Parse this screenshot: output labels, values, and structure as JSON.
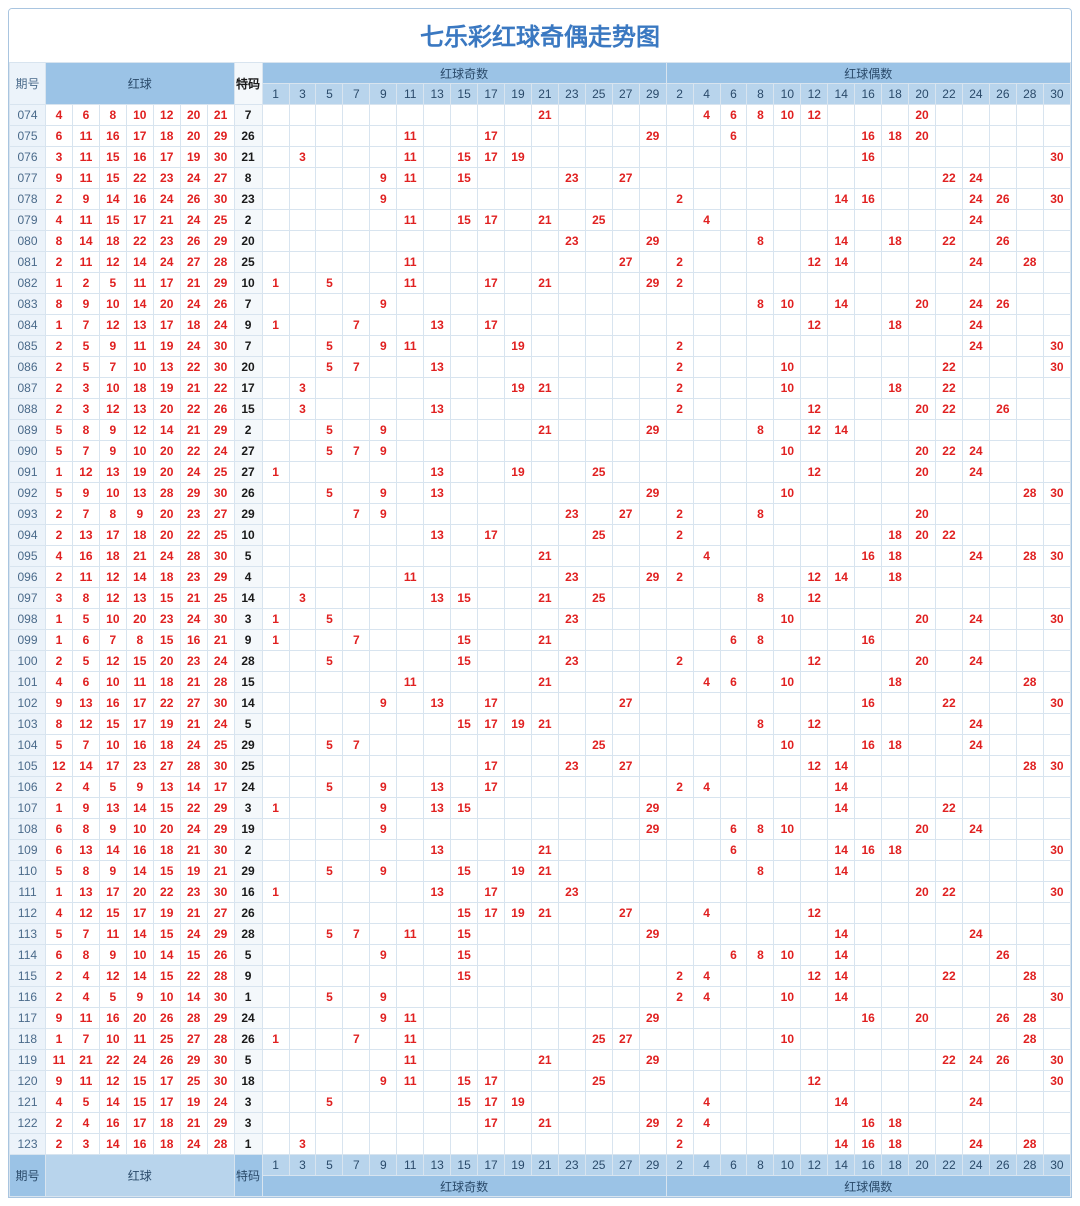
{
  "title": "七乐彩红球奇偶走势图",
  "headers": {
    "period": "期号",
    "red": "红球",
    "te": "特码",
    "odd_group": "红球奇数",
    "even_group": "红球偶数"
  },
  "odd_cols": [
    1,
    3,
    5,
    7,
    9,
    11,
    13,
    15,
    17,
    19,
    21,
    23,
    25,
    27,
    29
  ],
  "even_cols": [
    2,
    4,
    6,
    8,
    10,
    12,
    14,
    16,
    18,
    20,
    22,
    24,
    26,
    28,
    30
  ],
  "colors": {
    "header_bg": "#9bc3e6",
    "header_bg2": "#b8d4ec",
    "text_red": "#e02020",
    "text_dark": "#1a1a1a",
    "border": "#d8e4ef",
    "title": "#3a78c1"
  },
  "rows": [
    {
      "p": "074",
      "r": [
        4,
        6,
        8,
        10,
        12,
        20,
        21
      ],
      "t": 7
    },
    {
      "p": "075",
      "r": [
        6,
        11,
        16,
        17,
        18,
        20,
        29
      ],
      "t": 26
    },
    {
      "p": "076",
      "r": [
        3,
        11,
        15,
        16,
        17,
        19,
        30
      ],
      "t": 21
    },
    {
      "p": "077",
      "r": [
        9,
        11,
        15,
        22,
        23,
        24,
        27
      ],
      "t": 8
    },
    {
      "p": "078",
      "r": [
        2,
        9,
        14,
        16,
        24,
        26,
        30
      ],
      "t": 23
    },
    {
      "p": "079",
      "r": [
        4,
        11,
        15,
        17,
        21,
        24,
        25
      ],
      "t": 2
    },
    {
      "p": "080",
      "r": [
        8,
        14,
        18,
        22,
        23,
        26,
        29
      ],
      "t": 20
    },
    {
      "p": "081",
      "r": [
        2,
        11,
        12,
        14,
        24,
        27,
        28
      ],
      "t": 25
    },
    {
      "p": "082",
      "r": [
        1,
        2,
        5,
        11,
        17,
        21,
        29
      ],
      "t": 10
    },
    {
      "p": "083",
      "r": [
        8,
        9,
        10,
        14,
        20,
        24,
        26
      ],
      "t": 7
    },
    {
      "p": "084",
      "r": [
        1,
        7,
        12,
        13,
        17,
        18,
        24
      ],
      "t": 9
    },
    {
      "p": "085",
      "r": [
        2,
        5,
        9,
        11,
        19,
        24,
        30
      ],
      "t": 7
    },
    {
      "p": "086",
      "r": [
        2,
        5,
        7,
        10,
        13,
        22,
        30
      ],
      "t": 20
    },
    {
      "p": "087",
      "r": [
        2,
        3,
        10,
        18,
        19,
        21,
        22
      ],
      "t": 17
    },
    {
      "p": "088",
      "r": [
        2,
        3,
        12,
        13,
        20,
        22,
        26
      ],
      "t": 15
    },
    {
      "p": "089",
      "r": [
        5,
        8,
        9,
        12,
        14,
        21,
        29
      ],
      "t": 2
    },
    {
      "p": "090",
      "r": [
        5,
        7,
        9,
        10,
        20,
        22,
        24
      ],
      "t": 27
    },
    {
      "p": "091",
      "r": [
        1,
        12,
        13,
        19,
        20,
        24,
        25
      ],
      "t": 27
    },
    {
      "p": "092",
      "r": [
        5,
        9,
        10,
        13,
        28,
        29,
        30
      ],
      "t": 26
    },
    {
      "p": "093",
      "r": [
        2,
        7,
        8,
        9,
        20,
        23,
        27
      ],
      "t": 29
    },
    {
      "p": "094",
      "r": [
        2,
        13,
        17,
        18,
        20,
        22,
        25
      ],
      "t": 10
    },
    {
      "p": "095",
      "r": [
        4,
        16,
        18,
        21,
        24,
        28,
        30
      ],
      "t": 5
    },
    {
      "p": "096",
      "r": [
        2,
        11,
        12,
        14,
        18,
        23,
        29
      ],
      "t": 4
    },
    {
      "p": "097",
      "r": [
        3,
        8,
        12,
        13,
        15,
        21,
        25
      ],
      "t": 14
    },
    {
      "p": "098",
      "r": [
        1,
        5,
        10,
        20,
        23,
        24,
        30
      ],
      "t": 3
    },
    {
      "p": "099",
      "r": [
        1,
        6,
        7,
        8,
        15,
        16,
        21
      ],
      "t": 9
    },
    {
      "p": "100",
      "r": [
        2,
        5,
        12,
        15,
        20,
        23,
        24
      ],
      "t": 28
    },
    {
      "p": "101",
      "r": [
        4,
        6,
        10,
        11,
        18,
        21,
        28
      ],
      "t": 15
    },
    {
      "p": "102",
      "r": [
        9,
        13,
        16,
        17,
        22,
        27,
        30
      ],
      "t": 14
    },
    {
      "p": "103",
      "r": [
        8,
        12,
        15,
        17,
        19,
        21,
        24
      ],
      "t": 5
    },
    {
      "p": "104",
      "r": [
        5,
        7,
        10,
        16,
        18,
        24,
        25
      ],
      "t": 29
    },
    {
      "p": "105",
      "r": [
        12,
        14,
        17,
        23,
        27,
        28,
        30
      ],
      "t": 25
    },
    {
      "p": "106",
      "r": [
        2,
        4,
        5,
        9,
        13,
        14,
        17
      ],
      "t": 24
    },
    {
      "p": "107",
      "r": [
        1,
        9,
        13,
        14,
        15,
        22,
        29
      ],
      "t": 3
    },
    {
      "p": "108",
      "r": [
        6,
        8,
        9,
        10,
        20,
        24,
        29
      ],
      "t": 19
    },
    {
      "p": "109",
      "r": [
        6,
        13,
        14,
        16,
        18,
        21,
        30
      ],
      "t": 2
    },
    {
      "p": "110",
      "r": [
        5,
        8,
        9,
        14,
        15,
        19,
        21
      ],
      "t": 29
    },
    {
      "p": "111",
      "r": [
        1,
        13,
        17,
        20,
        22,
        23,
        30
      ],
      "t": 16
    },
    {
      "p": "112",
      "r": [
        4,
        12,
        15,
        17,
        19,
        21,
        27
      ],
      "t": 26
    },
    {
      "p": "113",
      "r": [
        5,
        7,
        11,
        14,
        15,
        24,
        29
      ],
      "t": 28
    },
    {
      "p": "114",
      "r": [
        6,
        8,
        9,
        10,
        14,
        15,
        26
      ],
      "t": 5
    },
    {
      "p": "115",
      "r": [
        2,
        4,
        12,
        14,
        15,
        22,
        28
      ],
      "t": 9
    },
    {
      "p": "116",
      "r": [
        2,
        4,
        5,
        9,
        10,
        14,
        30
      ],
      "t": 1
    },
    {
      "p": "117",
      "r": [
        9,
        11,
        16,
        20,
        26,
        28,
        29
      ],
      "t": 24
    },
    {
      "p": "118",
      "r": [
        1,
        7,
        10,
        11,
        25,
        27,
        28
      ],
      "t": 26
    },
    {
      "p": "119",
      "r": [
        11,
        21,
        22,
        24,
        26,
        29,
        30
      ],
      "t": 5
    },
    {
      "p": "120",
      "r": [
        9,
        11,
        12,
        15,
        17,
        25,
        30
      ],
      "t": 18
    },
    {
      "p": "121",
      "r": [
        4,
        5,
        14,
        15,
        17,
        19,
        24
      ],
      "t": 3
    },
    {
      "p": "122",
      "r": [
        2,
        4,
        16,
        17,
        18,
        21,
        29
      ],
      "t": 3
    },
    {
      "p": "123",
      "r": [
        2,
        3,
        14,
        16,
        18,
        24,
        28
      ],
      "t": 1
    }
  ]
}
